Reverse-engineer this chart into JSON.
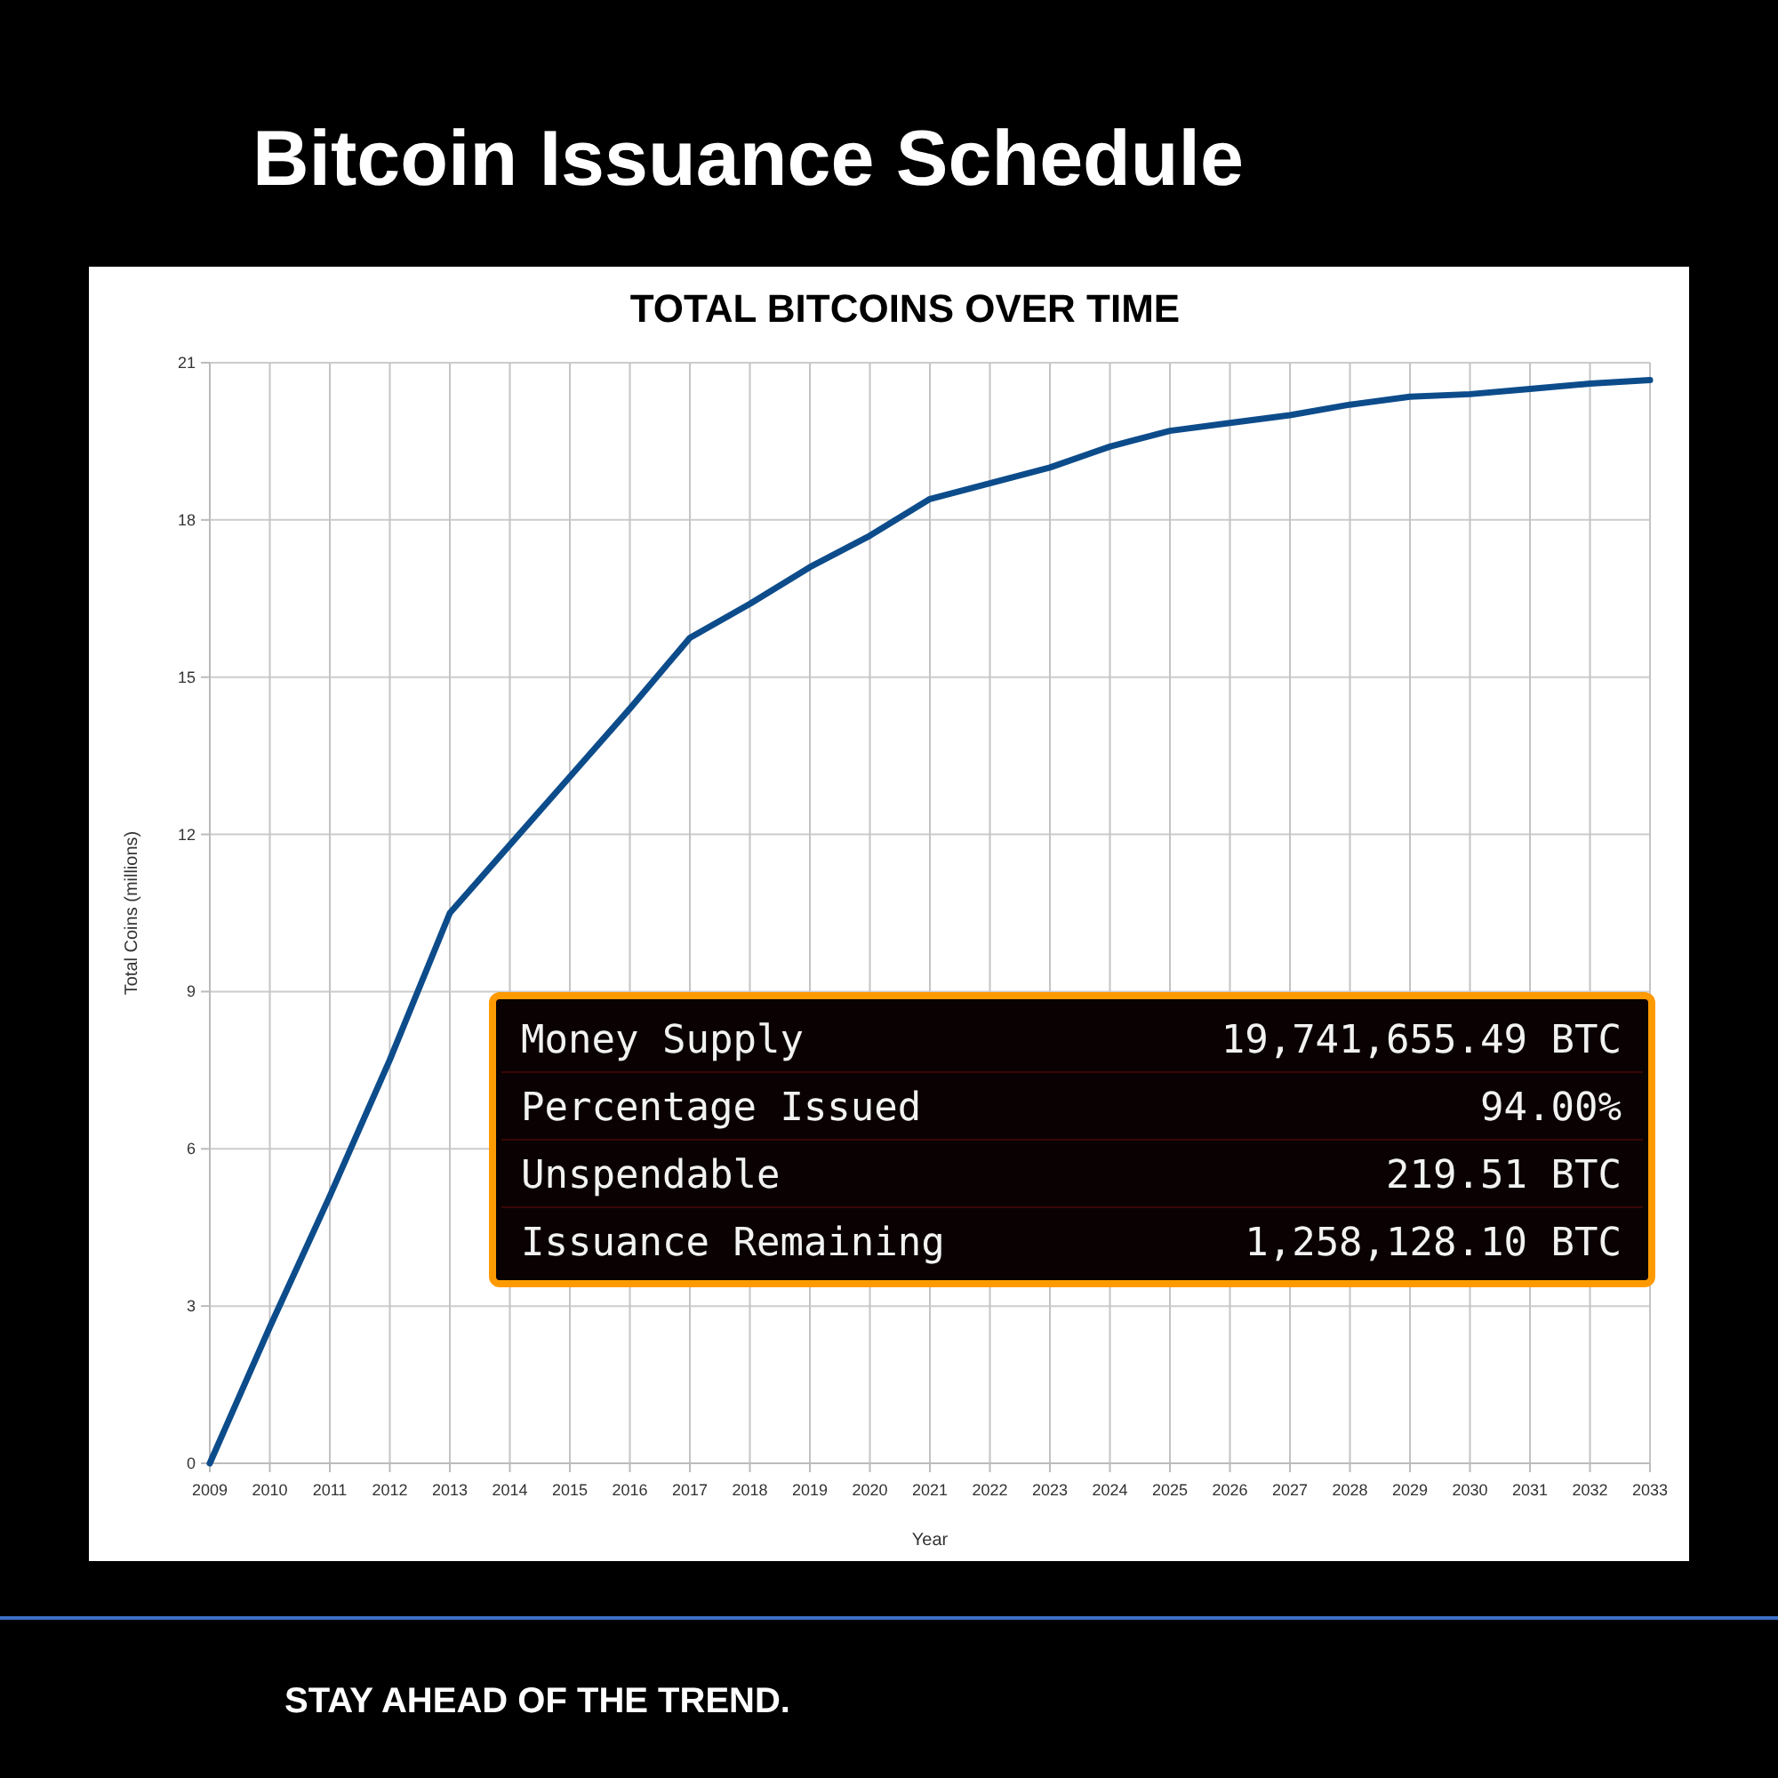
{
  "chart_data": {
    "type": "line",
    "title": "Bitcoin Issuance Schedule",
    "subtitle": "TOTAL BITCOINS OVER TIME",
    "xlabel": "Year",
    "ylabel": "Total Coins (millions)",
    "x": [
      2009,
      2010,
      2011,
      2012,
      2013,
      2014,
      2015,
      2016,
      2017,
      2018,
      2019,
      2020,
      2021,
      2022,
      2023,
      2024,
      2025,
      2026,
      2027,
      2028,
      2029,
      2030,
      2031,
      2032,
      2033
    ],
    "series": [
      {
        "color": "#0d4c8b",
        "values": [
          0,
          2.6,
          5.1,
          7.7,
          10.5,
          11.8,
          13.1,
          14.4,
          15.75,
          16.4,
          17.1,
          17.7,
          18.4,
          18.7,
          19.0,
          19.4,
          19.7,
          19.85,
          20.0,
          20.2,
          20.35,
          20.4,
          20.5,
          20.6,
          20.67
        ]
      }
    ],
    "xlim": [
      2009,
      2033
    ],
    "xticks": [
      2009,
      2010,
      2011,
      2012,
      2013,
      2014,
      2015,
      2016,
      2017,
      2018,
      2019,
      2020,
      2021,
      2022,
      2023,
      2024,
      2025,
      2026,
      2027,
      2028,
      2029,
      2030,
      2031,
      2032,
      2033
    ],
    "ylim": [
      0,
      21
    ],
    "yticks": [
      0,
      3,
      6,
      9,
      12,
      15,
      18,
      21
    ],
    "grid": true,
    "line_style": "solid",
    "annotations": [
      "Money Supply",
      "19,741,655.49 BTC",
      "Percentage Issued",
      "94.00%",
      "Unspendable",
      "219.51 BTC",
      "Issuance Remaining",
      "1,258,128.10 BTC",
      "STAY AHEAD OF THE TREND."
    ]
  }
}
